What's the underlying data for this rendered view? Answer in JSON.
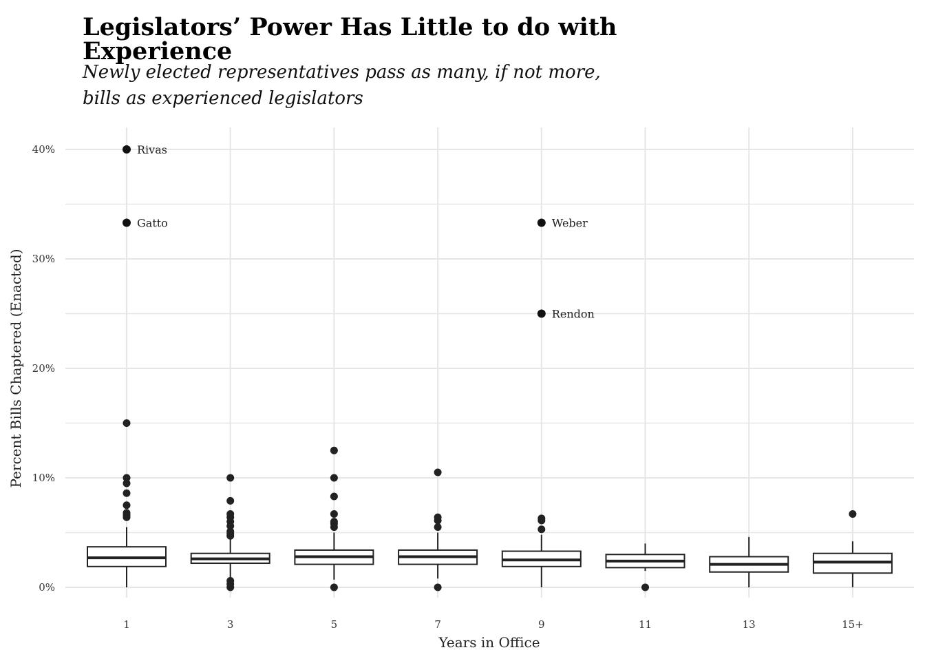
{
  "chart_data": {
    "type": "boxplot",
    "title": "Legislators’ Power Has Little to do with Experience",
    "subtitle": "Newly elected representatives pass as many, if not more, bills as experienced legislators",
    "xlabel": "Years in Office",
    "ylabel": "Percent Bills Chaptered (Enacted)",
    "ylim": [
      0,
      40
    ],
    "y_unit": "%",
    "y_ticks": [
      0,
      10,
      20,
      30,
      40
    ],
    "y_tick_labels": [
      "0%",
      "10%",
      "20%",
      "30%",
      "40%"
    ],
    "categories": [
      "1",
      "3",
      "5",
      "7",
      "9",
      "11",
      "13",
      "15+"
    ],
    "boxes": [
      {
        "category": "1",
        "whisker_low": 0,
        "q1": 1.9,
        "median": 2.7,
        "q3": 3.7,
        "whisker_high": 5.5,
        "outliers": [
          6.4,
          6.6,
          6.8,
          7.5,
          8.6,
          9.5,
          10.0,
          15.0,
          33.3,
          40.0
        ]
      },
      {
        "category": "3",
        "whisker_low": 0.9,
        "q1": 2.2,
        "median": 2.6,
        "q3": 3.1,
        "whisker_high": 4.4,
        "outliers": [
          0,
          0.3,
          0.6,
          4.7,
          4.9,
          5.1,
          5.6,
          6.0,
          6.4,
          6.7,
          7.9,
          10.0
        ]
      },
      {
        "category": "5",
        "whisker_low": 0.7,
        "q1": 2.1,
        "median": 2.8,
        "q3": 3.4,
        "whisker_high": 5.0,
        "outliers": [
          0,
          5.5,
          5.8,
          6.0,
          6.7,
          8.3,
          10.0,
          12.5
        ]
      },
      {
        "category": "7",
        "whisker_low": 0.8,
        "q1": 2.1,
        "median": 2.8,
        "q3": 3.4,
        "whisker_high": 5.0,
        "outliers": [
          0,
          5.5,
          6.1,
          6.4,
          10.5
        ]
      },
      {
        "category": "9",
        "whisker_low": 0,
        "q1": 1.9,
        "median": 2.5,
        "q3": 3.3,
        "whisker_high": 4.8,
        "outliers": [
          5.3,
          6.1,
          6.3,
          25.0,
          33.3
        ]
      },
      {
        "category": "11",
        "whisker_low": 1.5,
        "q1": 1.8,
        "median": 2.4,
        "q3": 3.0,
        "whisker_high": 4.0,
        "outliers": [
          0
        ]
      },
      {
        "category": "13",
        "whisker_low": 0,
        "q1": 1.4,
        "median": 2.1,
        "q3": 2.8,
        "whisker_high": 4.6,
        "outliers": []
      },
      {
        "category": "15+",
        "whisker_low": 0,
        "q1": 1.3,
        "median": 2.3,
        "q3": 3.1,
        "whisker_high": 4.2,
        "outliers": [
          6.7
        ]
      }
    ],
    "labeled_points": [
      {
        "category": "1",
        "value": 40.0,
        "label": "Rivas"
      },
      {
        "category": "1",
        "value": 33.3,
        "label": "Gatto"
      },
      {
        "category": "9",
        "value": 33.3,
        "label": "Weber"
      },
      {
        "category": "9",
        "value": 25.0,
        "label": "Rendon"
      }
    ],
    "grid": true,
    "colors": {
      "box_line": "#222222",
      "box_fill": "#ffffff",
      "grid": "#e6e6e6",
      "point": "#222222"
    }
  }
}
